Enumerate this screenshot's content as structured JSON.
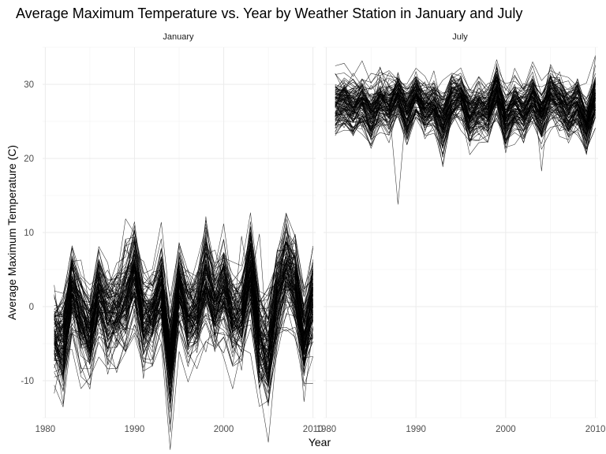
{
  "chart_data": {
    "type": "line",
    "title": "Average Maximum Temperature vs. Year by Weather Station in January and July",
    "xlabel": "Year",
    "ylabel": "Average Maximum Temperature (C)",
    "xlim": [
      1980,
      2010
    ],
    "ylim": [
      -15,
      35
    ],
    "x_ticks": [
      1980,
      1990,
      2000,
      2010
    ],
    "y_ticks": [
      -10,
      0,
      10,
      20,
      30
    ],
    "grid": true,
    "legend": "none",
    "facets": [
      {
        "name": "January",
        "years": [
          1981,
          1982,
          1983,
          1984,
          1985,
          1986,
          1987,
          1988,
          1989,
          1990,
          1991,
          1992,
          1993,
          1994,
          1995,
          1996,
          1997,
          1998,
          1999,
          2000,
          2001,
          2002,
          2003,
          2004,
          2005,
          2006,
          2007,
          2008,
          2009,
          2010
        ],
        "mean_by_year": [
          -3.5,
          -4.5,
          2.5,
          -1.0,
          -3.5,
          2.0,
          -1.0,
          -0.5,
          1.5,
          5.0,
          -1.5,
          -1.0,
          2.5,
          -7.0,
          3.0,
          -1.5,
          -0.5,
          4.0,
          0.5,
          3.0,
          -1.0,
          -0.5,
          5.0,
          -4.0,
          -5.5,
          1.5,
          5.5,
          3.0,
          -4.0,
          1.0
        ],
        "spread_by_year": [
          3.0,
          3.5,
          3.0,
          3.0,
          3.0,
          3.0,
          3.0,
          3.0,
          3.5,
          3.5,
          3.0,
          3.0,
          3.0,
          3.5,
          3.0,
          3.0,
          3.0,
          3.5,
          3.0,
          3.5,
          3.0,
          3.0,
          3.5,
          3.5,
          4.0,
          3.5,
          3.5,
          3.5,
          3.5,
          3.5
        ],
        "station_count": 110,
        "outliers": [
          {
            "year": 1982,
            "value": -13.2
          },
          {
            "year": 1994,
            "value": -10.6
          },
          {
            "year": 1998,
            "value": 10.1
          },
          {
            "year": 2002,
            "value": 9.5
          },
          {
            "year": 2004,
            "value": 9.8
          },
          {
            "year": 2005,
            "value": -10.5
          }
        ]
      },
      {
        "name": "July",
        "years": [
          1981,
          1982,
          1983,
          1984,
          1985,
          1986,
          1987,
          1988,
          1989,
          1990,
          1991,
          1992,
          1993,
          1994,
          1995,
          1996,
          1997,
          1998,
          1999,
          2000,
          2001,
          2002,
          2003,
          2004,
          2005,
          2006,
          2007,
          2008,
          2009,
          2010
        ],
        "mean_by_year": [
          27.0,
          27.5,
          26.5,
          27.5,
          25.5,
          27.5,
          26.5,
          28.5,
          26.0,
          28.5,
          26.5,
          27.0,
          24.5,
          28.0,
          28.5,
          25.5,
          26.5,
          26.0,
          29.0,
          25.0,
          27.0,
          26.0,
          28.0,
          25.5,
          28.5,
          27.5,
          26.0,
          27.5,
          24.5,
          28.0
        ],
        "spread_by_year": [
          2.0,
          2.0,
          2.0,
          1.8,
          2.0,
          1.8,
          2.0,
          1.6,
          2.0,
          1.6,
          1.8,
          1.8,
          2.2,
          1.8,
          1.6,
          2.0,
          1.8,
          1.8,
          1.8,
          2.2,
          1.8,
          1.8,
          1.8,
          2.0,
          1.8,
          1.8,
          2.0,
          1.8,
          2.0,
          2.0
        ],
        "station_count": 110,
        "outliers": [
          {
            "year": 1988,
            "value": 13.8
          },
          {
            "year": 1999,
            "value": 32.8
          },
          {
            "year": 2004,
            "value": 18.3
          },
          {
            "year": 2010,
            "value": 33.7
          }
        ]
      }
    ]
  }
}
